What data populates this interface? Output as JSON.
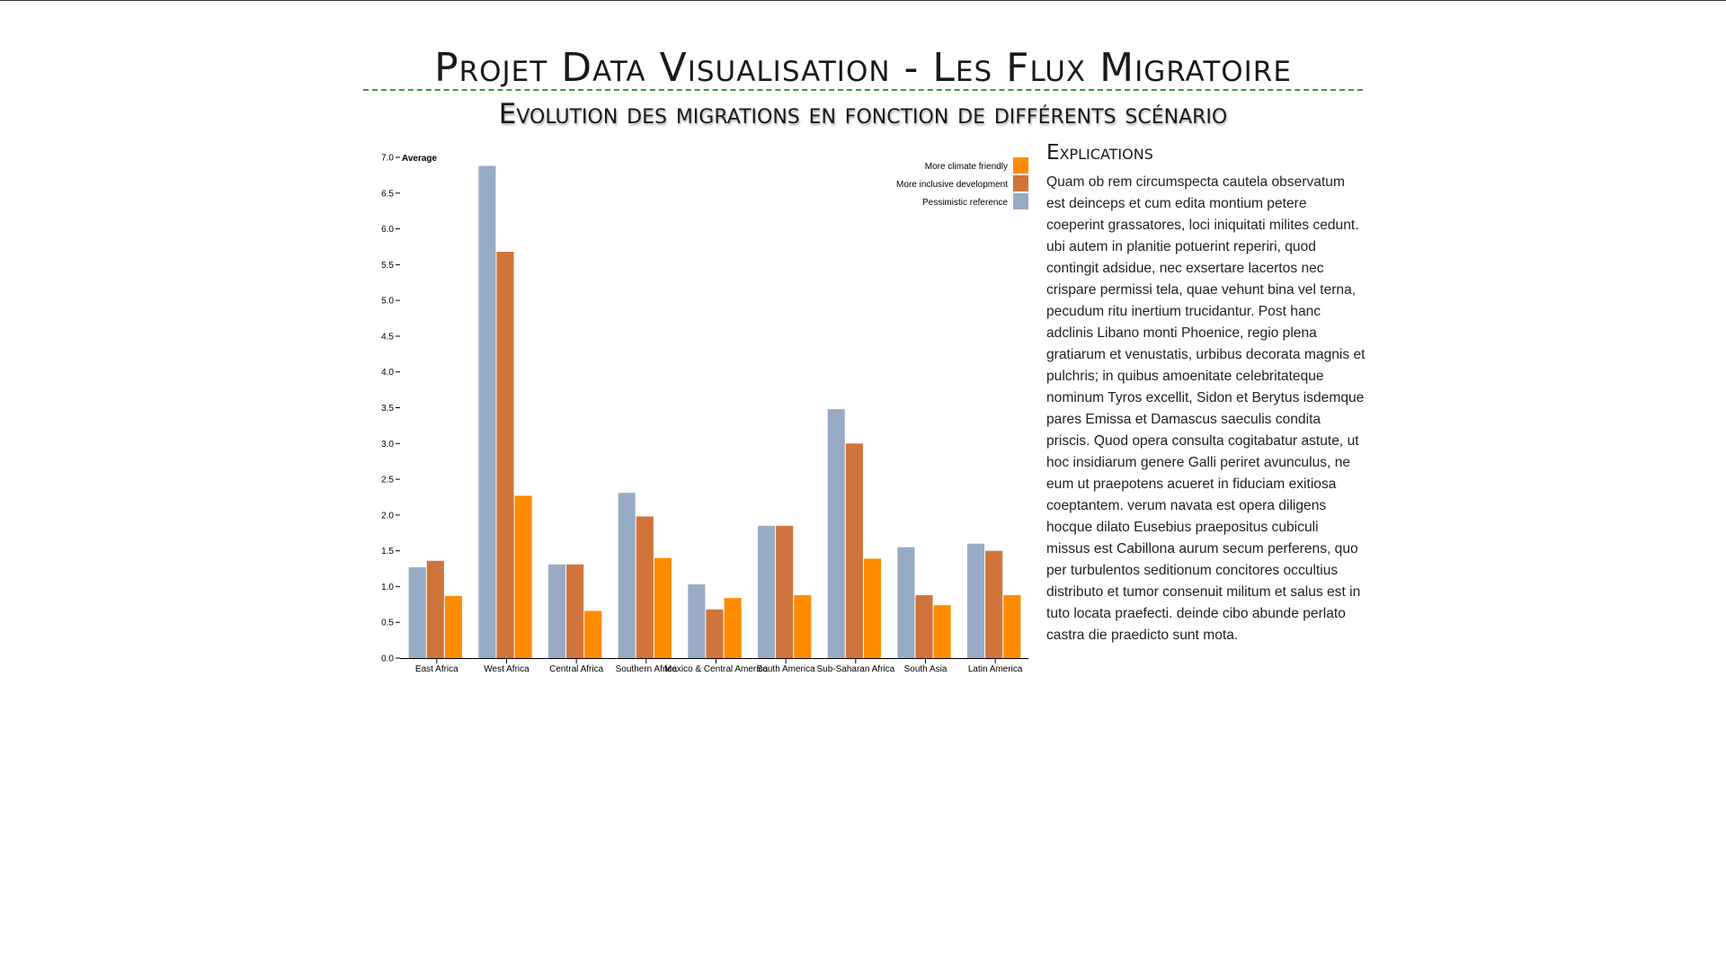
{
  "page": {
    "title": "Projet Data Visualisation - Les Flux Migratoire"
  },
  "chart_section": {
    "title": "Evolution des migrations en fonction de différents scénario"
  },
  "explications": {
    "title": "Explications",
    "text": "Quam ob rem circumspecta cautela observatum est deinceps et cum edita montium petere coeperint grassatores, loci iniquitati milites cedunt. ubi autem in planitie potuerint reperiri, quod contingit adsidue, nec exsertare lacertos nec crispare permissi tela, quae vehunt bina vel terna, pecudum ritu inertium trucidantur. Post hanc adclinis Libano monti Phoenice, regio plena gratiarum et venustatis, urbibus decorata magnis et pulchris; in quibus amoenitate celebritateque nominum Tyros excellit, Sidon et Berytus isdemque pares Emissa et Damascus saeculis condita priscis. Quod opera consulta cogitabatur astute, ut hoc insidiarum genere Galli periret avunculus, ne eum ut praepotens acueret in fiduciam exitiosa coeptantem. verum navata est opera diligens hocque dilato Eusebius praepositus cubiculi missus est Cabillona aurum secum perferens, quo per turbulentos seditionum concitores occultius distributo et tumor consenuit militum et salus est in tuto locata praefecti. deinde cibo abunde perlato castra die praedicto sunt mota."
  },
  "chart_data": {
    "type": "bar",
    "title": "Evolution des migrations en fonction de différents scénario",
    "ylabel": "Average",
    "xlabel": "",
    "ylim": [
      0,
      7.0
    ],
    "yticks": [
      "0.0",
      "0.5",
      "1.0",
      "1.5",
      "2.0",
      "2.5",
      "3.0",
      "3.5",
      "4.0",
      "4.5",
      "5.0",
      "5.5",
      "6.0",
      "6.5",
      "7.0"
    ],
    "grid": false,
    "legend_position": "top-right",
    "categories": [
      "East Africa",
      "West Africa",
      "Central Africa",
      "Southern Africa",
      "Mexico & Central America",
      "South America",
      "Sub-Saharan Africa",
      "South Asia",
      "Latin America"
    ],
    "series": [
      {
        "name": "Pessimistic reference",
        "color": "#98abc5",
        "values": [
          1.27,
          6.88,
          1.31,
          2.31,
          1.03,
          1.85,
          3.48,
          1.55,
          1.6
        ]
      },
      {
        "name": "More inclusive development",
        "color": "#d0743c",
        "values": [
          1.36,
          5.68,
          1.31,
          1.98,
          0.68,
          1.85,
          3.0,
          0.88,
          1.5
        ]
      },
      {
        "name": "More climate friendly",
        "color": "#ff8c00",
        "values": [
          0.87,
          2.27,
          0.66,
          1.4,
          0.84,
          0.88,
          1.39,
          0.74,
          0.88
        ]
      }
    ],
    "legend_order": [
      "More climate friendly",
      "More inclusive development",
      "Pessimistic reference"
    ]
  }
}
